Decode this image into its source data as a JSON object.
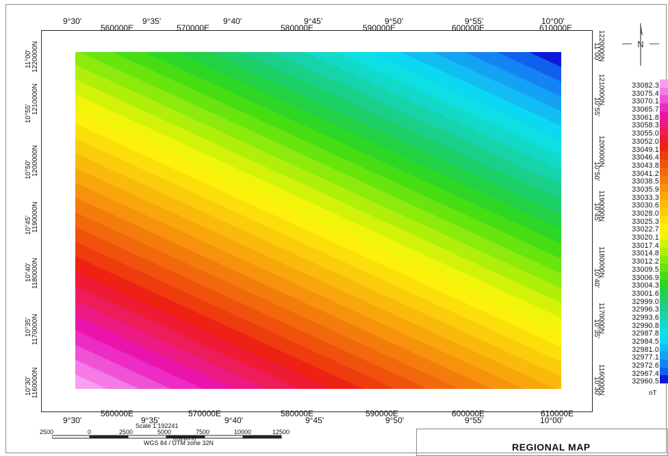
{
  "top_deg_labels": [
    "9°30'",
    "9°35'",
    "9°40'",
    "9°45'",
    "9°50'",
    "9°55'",
    "10°00'"
  ],
  "top_utm_labels": [
    "560000E",
    "570000E",
    "580000E",
    "590000E",
    "600000E",
    "610000E"
  ],
  "bottom_deg_labels": [
    "9°30'",
    "9°35'",
    "9°40'",
    "9°45'",
    "9°50'",
    "9°55'",
    "10°00'"
  ],
  "bottom_utm_labels": [
    "560000E",
    "570000E",
    "580000E",
    "590000E",
    "600000E",
    "610000E"
  ],
  "left_deg_labels": [
    "11°00'",
    "10°55'",
    "10°50'",
    "10°45'",
    "10°40'",
    "10°35'",
    "10°30'"
  ],
  "left_utm_labels": [
    "1220000N",
    "1210000N",
    "1200000N",
    "1190000N",
    "1180000N",
    "1170000N",
    "1160000N"
  ],
  "right_deg_labels": [
    "11°00'",
    "10°55'",
    "10°50'",
    "10°45'",
    "10°40'",
    "10°35'",
    "10°30'"
  ],
  "right_utm_labels": [
    "1220000N",
    "1210000N",
    "1200000N",
    "1190000N",
    "1180000N",
    "1170000N",
    "1160000N"
  ],
  "legend": {
    "unit": "nT",
    "values": [
      "33082.3",
      "33075.4",
      "33070.1",
      "33065.7",
      "33061.8",
      "33058.3",
      "33055.0",
      "33052.0",
      "33049.1",
      "33046.4",
      "33043.8",
      "33041.2",
      "33038.5",
      "33035.9",
      "33033.3",
      "33030.6",
      "33028.0",
      "33025.3",
      "33022.7",
      "33020.1",
      "33017.4",
      "33014.8",
      "33012.2",
      "33009.5",
      "33006.9",
      "33004.3",
      "33001.6",
      "32999.0",
      "32996.3",
      "32993.6",
      "32990.8",
      "32987.8",
      "32984.5",
      "32981.0",
      "32977.1",
      "32972.6",
      "32967.4",
      "32960.5"
    ],
    "colors": [
      "#f7a0f2",
      "#f47ae6",
      "#f052d6",
      "#ec2cc4",
      "#ea14ab",
      "#ec1a82",
      "#ee1c58",
      "#ef1a34",
      "#ee2214",
      "#ef3c0e",
      "#f0520d",
      "#f2680c",
      "#f47c0c",
      "#f6920c",
      "#f8a60b",
      "#f9ba0b",
      "#fbcc0b",
      "#fcde0b",
      "#fdf00a",
      "#f0f509",
      "#d2f309",
      "#b0ef0a",
      "#8cea0c",
      "#68e40e",
      "#46de12",
      "#2ed726",
      "#22d244",
      "#1ccf66",
      "#1acf88",
      "#16d3aa",
      "#12d9c8",
      "#0edfe2",
      "#0cd8f2",
      "#12bdf4",
      "#14a2f4",
      "#1484f4",
      "#1060ee",
      "#0a1ad8"
    ]
  },
  "north_arrow_letter": "N",
  "scale_bar": {
    "scale_text": "Scale 1:192241",
    "ticks": [
      "2500",
      "0",
      "2500",
      "5000",
      "7500",
      "10000",
      "12500"
    ],
    "unit": "(meters)",
    "projection": "WGS 84 / UTM zone 32N"
  },
  "map_title": "REGIONAL MAP",
  "field": {
    "min": 32960.5,
    "max": 33082.3
  }
}
